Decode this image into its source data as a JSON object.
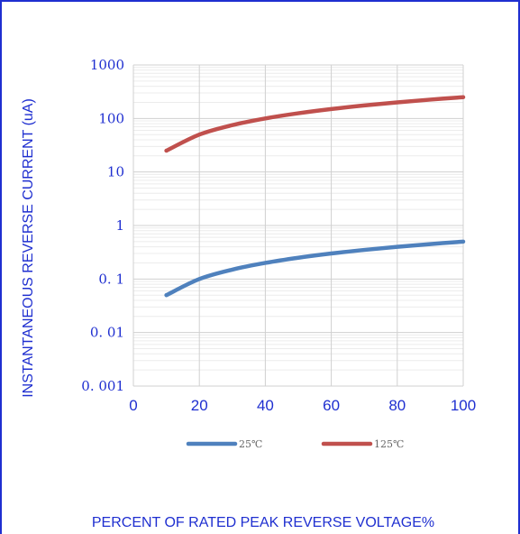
{
  "chart_data": {
    "type": "line",
    "title": "",
    "xlabel": "PERCENT OF RATED PEAK REVERSE VOLTAGE%",
    "ylabel": "INSTANTANEOUS REVERSE CURRENT (uA)",
    "xlim": [
      0,
      100
    ],
    "ylim": [
      0.001,
      1000
    ],
    "yscale": "log",
    "grid": true,
    "legend_position": "bottom",
    "x_ticks": [
      0,
      20,
      40,
      60,
      80,
      100
    ],
    "x_tick_labels": [
      "0",
      "20",
      "40",
      "60",
      "80",
      "100"
    ],
    "y_ticks": [
      0.001,
      0.01,
      0.1,
      1,
      10,
      100,
      1000
    ],
    "y_tick_labels": [
      "0. 001",
      "0. 01",
      "0. 1",
      "1",
      "10",
      "100",
      "1000"
    ],
    "x": [
      10,
      20,
      30,
      40,
      50,
      60,
      70,
      80,
      90,
      100
    ],
    "series": [
      {
        "name": "25℃",
        "color": "#4f81bd",
        "values": [
          0.05,
          0.1,
          0.15,
          0.2,
          0.25,
          0.3,
          0.35,
          0.4,
          0.45,
          0.5
        ]
      },
      {
        "name": "125℃",
        "color": "#c0504d",
        "values": [
          25,
          50,
          75,
          100,
          125,
          150,
          175,
          200,
          225,
          250
        ]
      }
    ]
  }
}
